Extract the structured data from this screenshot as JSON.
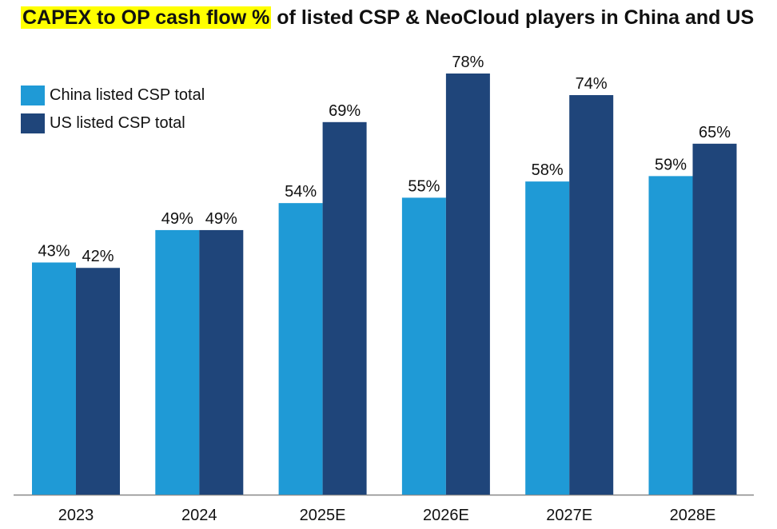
{
  "title": {
    "highlight": "CAPEX to OP cash flow %",
    "rest": " of listed CSP & NeoCloud players in China and US"
  },
  "colors": {
    "china": "#1f9ad6",
    "us": "#1f457a",
    "highlight": "#ffff00"
  },
  "chart_data": {
    "type": "bar",
    "title": "CAPEX to OP cash flow % of listed CSP & NeoCloud players in China and US",
    "categories": [
      "2023",
      "2024",
      "2025E",
      "2026E",
      "2027E",
      "2028E"
    ],
    "series": [
      {
        "name": "China listed CSP total",
        "values": [
          43,
          49,
          54,
          55,
          58,
          59
        ],
        "labels": [
          "43%",
          "49%",
          "54%",
          "55%",
          "58%",
          "59%"
        ]
      },
      {
        "name": "US listed CSP total",
        "values": [
          42,
          49,
          69,
          78,
          74,
          65
        ],
        "labels": [
          "42%",
          "49%",
          "69%",
          "78%",
          "74%",
          "65%"
        ]
      }
    ],
    "xlabel": "",
    "ylabel": "",
    "ylim": [
      0,
      78
    ],
    "grid": false,
    "legend_position": "top-left"
  }
}
